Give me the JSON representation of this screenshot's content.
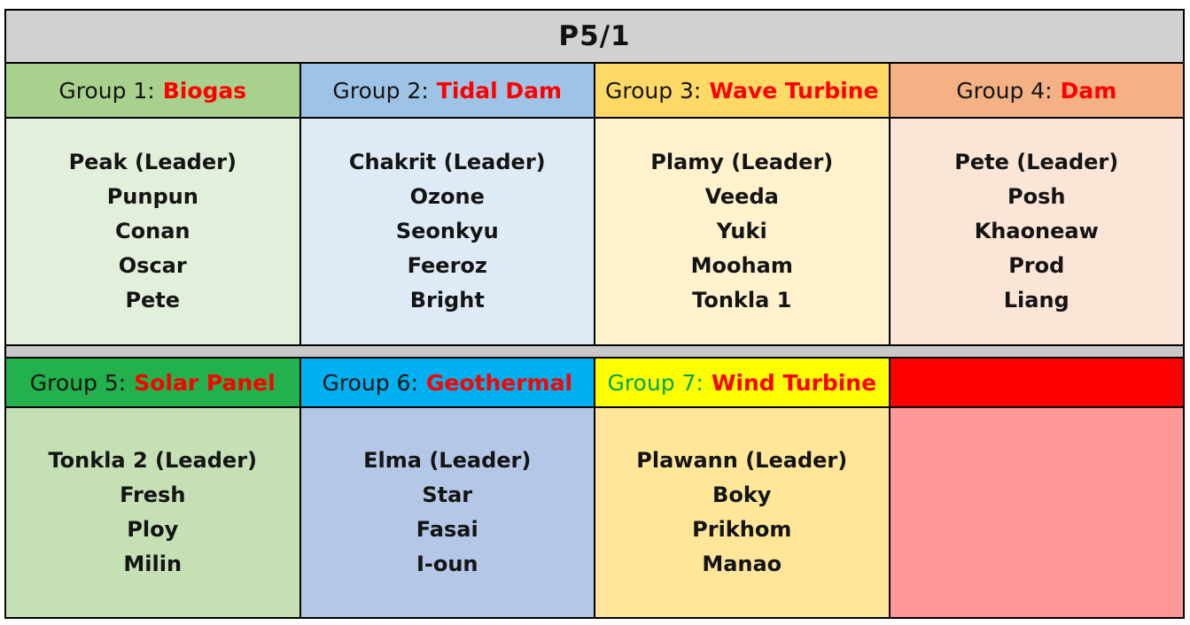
{
  "title": "P5/1",
  "colors": {
    "title_bar_bg": "#D2D0D0",
    "spacer_bg": "#C9C7C7",
    "grid_line": "#000000",
    "topic_text": "#FF0000",
    "label_text": "#141414",
    "group7_label_text": "#00A651"
  },
  "groups": [
    {
      "label": "Group 1:",
      "topic": "Biogas",
      "header_bg": "#A9D18E",
      "body_bg": "#E2EFDA",
      "label_color": "#141414",
      "topic_color": "#FF0000",
      "members": [
        "Peak (Leader)",
        "Punpun",
        "Conan",
        "Oscar",
        "Pete"
      ]
    },
    {
      "label": "Group 2:",
      "topic": "Tidal Dam",
      "header_bg": "#9DC3E6",
      "body_bg": "#DEEBF7",
      "label_color": "#141414",
      "topic_color": "#FF0000",
      "members": [
        "Chakrit (Leader)",
        "Ozone",
        "Seonkyu",
        "Feeroz",
        "Bright"
      ]
    },
    {
      "label": "Group 3:",
      "topic": "Wave Turbine",
      "header_bg": "#FFD966",
      "body_bg": "#FFF2CC",
      "label_color": "#141414",
      "topic_color": "#FF0000",
      "members": [
        "Plamy (Leader)",
        "Veeda",
        "Yuki",
        "Mooham",
        "Tonkla 1"
      ]
    },
    {
      "label": "Group 4:",
      "topic": "Dam",
      "header_bg": "#F4B183",
      "body_bg": "#FBE5D6",
      "label_color": "#141414",
      "topic_color": "#FF0000",
      "members": [
        "Pete (Leader)",
        "Posh",
        "Khaoneaw",
        "Prod",
        "Liang"
      ]
    },
    {
      "label": "Group 5:",
      "topic": "Solar Panel",
      "header_bg": "#22B14C",
      "body_bg": "#C5E0B4",
      "label_color": "#141414",
      "topic_color": "#FF0000",
      "members": [
        "Tonkla 2 (Leader)",
        "Fresh",
        "Ploy",
        "Milin"
      ]
    },
    {
      "label": "Group 6:",
      "topic": "Geothermal",
      "header_bg": "#00B0F0",
      "body_bg": "#B4C7E7",
      "label_color": "#141414",
      "topic_color": "#FF0000",
      "members": [
        "Elma (Leader)",
        "Star",
        "Fasai",
        "I-oun"
      ]
    },
    {
      "label": "Group 7:",
      "topic": "Wind Turbine",
      "header_bg": "#FFFF00",
      "body_bg": "#FFE699",
      "label_color": "#00A651",
      "topic_color": "#FF0000",
      "members": [
        "Plawann (Leader)",
        "Boky",
        "Prikhom",
        "Manao"
      ]
    },
    {
      "label": "",
      "topic": "",
      "header_bg": "#FF0000",
      "body_bg": "#FF9999",
      "label_color": "#141414",
      "topic_color": "#FF0000",
      "members": []
    }
  ]
}
